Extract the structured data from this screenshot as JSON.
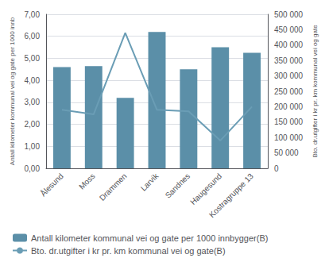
{
  "chart_data": {
    "type": "bar",
    "categories": [
      "Ålesund",
      "Moss",
      "Drammen",
      "Larvik",
      "Sandnes",
      "Haugesund",
      "Kostragruppe 13"
    ],
    "series": [
      {
        "name": "Antall kilometer kommunal vei og gate per 1000 innbygger(B)",
        "type": "bar",
        "color": "#5b8fa8",
        "values": [
          4.6,
          4.65,
          3.2,
          6.2,
          4.5,
          5.5,
          5.25
        ]
      },
      {
        "name": "Bto. dr.utgifter i kr pr. km kommunal vei og gate(B)",
        "type": "line",
        "color": "#6a9db5",
        "axis": "y2",
        "values": [
          190000,
          175000,
          440000,
          190000,
          185000,
          90000,
          200000
        ]
      }
    ],
    "ylabel": "Antall kilometer kommunal vei og gate per 1000 innb",
    "y2label": "Bto. dr.utgifter i kr pr. km kommunal vei og gate",
    "ylim": [
      0,
      7.0
    ],
    "yticks": [
      {
        "value": 0.0,
        "label": "0,00"
      },
      {
        "value": 1.0,
        "label": "1,00"
      },
      {
        "value": 2.0,
        "label": "2,00"
      },
      {
        "value": 3.0,
        "label": "3,00"
      },
      {
        "value": 4.0,
        "label": "4,00"
      },
      {
        "value": 5.0,
        "label": "5,00"
      },
      {
        "value": 6.0,
        "label": "6,00"
      },
      {
        "value": 7.0,
        "label": "7,00"
      }
    ],
    "y2lim": [
      0,
      500000
    ],
    "y2ticks": [
      0,
      {
        "value": 50000,
        "label": "50 000"
      },
      {
        "value": 100000,
        "label": "100 000"
      },
      {
        "value": 150000,
        "label": "150 000"
      },
      {
        "value": 200000,
        "label": "200 000"
      },
      {
        "value": 250000,
        "label": "250 000"
      },
      {
        "value": 300000,
        "label": "300 000"
      },
      {
        "value": 350000,
        "label": "350 000"
      },
      {
        "value": 400000,
        "label": "400 000"
      },
      {
        "value": 450000,
        "label": "450 000"
      },
      {
        "value": 500000,
        "label": "500 000"
      }
    ],
    "grid": true,
    "legend": "lower left"
  }
}
